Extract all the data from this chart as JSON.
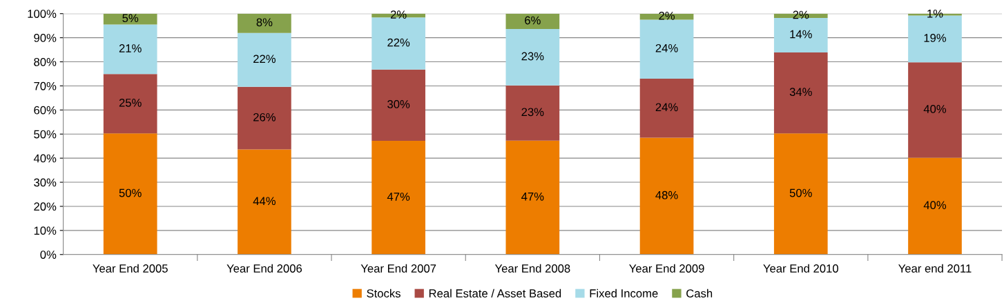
{
  "chart_data": {
    "type": "bar",
    "stacked": true,
    "categories": [
      "Year End 2005",
      "Year End 2006",
      "Year End 2007",
      "Year End 2008",
      "Year End 2009",
      "Year End 2010",
      "Year end 2011"
    ],
    "series": [
      {
        "name": "Stocks",
        "color": "#ed7d00",
        "values": [
          50.3,
          43.6,
          47.2,
          47.3,
          48.5,
          50.3,
          40.2
        ],
        "value_labels": [
          "50%",
          "44%",
          "47%",
          "47%",
          "48%",
          "50%",
          "40%"
        ]
      },
      {
        "name": "Real Estate / Asset Based",
        "color": "#a94a44",
        "values": [
          24.6,
          26.0,
          29.6,
          22.9,
          24.5,
          33.6,
          39.6
        ],
        "value_labels": [
          "25%",
          "26%",
          "30%",
          "23%",
          "24%",
          "34%",
          "40%"
        ]
      },
      {
        "name": "Fixed Income",
        "color": "#a6dbe8",
        "values": [
          20.6,
          22.4,
          21.6,
          23.4,
          24.5,
          14.3,
          19.4
        ],
        "value_labels": [
          "21%",
          "22%",
          "22%",
          "23%",
          "24%",
          "14%",
          "19%"
        ]
      },
      {
        "name": "Cash",
        "color": "#86a24c",
        "values": [
          4.5,
          8.0,
          1.6,
          6.4,
          2.4,
          1.8,
          0.8
        ],
        "value_labels": [
          "5%",
          "8%",
          "2%",
          "6%",
          "2%",
          "2%",
          "1%"
        ]
      }
    ],
    "ylim": [
      0,
      100
    ],
    "yticks": [
      {
        "value": 0,
        "label": "0%"
      },
      {
        "value": 10,
        "label": "10%"
      },
      {
        "value": 20,
        "label": "20%"
      },
      {
        "value": 30,
        "label": "30%"
      },
      {
        "value": 40,
        "label": "40%"
      },
      {
        "value": 50,
        "label": "50%"
      },
      {
        "value": 60,
        "label": "60%"
      },
      {
        "value": 70,
        "label": "70%"
      },
      {
        "value": 80,
        "label": "80%"
      },
      {
        "value": 90,
        "label": "90%"
      },
      {
        "value": 100,
        "label": "100%"
      }
    ],
    "grid": "y",
    "legend": "bottom"
  }
}
